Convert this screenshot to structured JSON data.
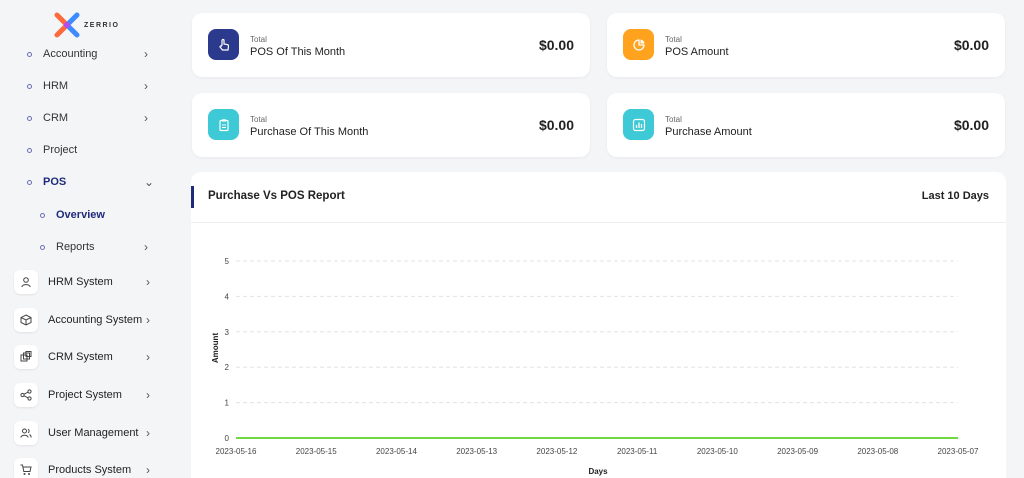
{
  "brand": {
    "name": "ZERRIO"
  },
  "sidebar": {
    "sub_items": [
      {
        "label": "Accounting",
        "chevron": "›"
      },
      {
        "label": "HRM",
        "chevron": "›"
      },
      {
        "label": "CRM",
        "chevron": "›"
      },
      {
        "label": "Project",
        "chevron": ""
      },
      {
        "label": "POS",
        "chevron": "⌄"
      },
      {
        "label": "Overview",
        "chevron": ""
      },
      {
        "label": "Reports",
        "chevron": "›"
      }
    ],
    "systems": [
      {
        "label": "HRM System",
        "icon": "user-icon"
      },
      {
        "label": "Accounting System",
        "icon": "box-icon"
      },
      {
        "label": "CRM System",
        "icon": "layers-icon"
      },
      {
        "label": "Project System",
        "icon": "share-icon"
      },
      {
        "label": "User Management",
        "icon": "users-icon"
      },
      {
        "label": "Products System",
        "icon": "cart-icon"
      }
    ]
  },
  "cards": [
    {
      "total": "Total",
      "title": "POS Of This Month",
      "value": "$0.00",
      "color": "#2b3a8c",
      "icon": "hand-pointer-icon"
    },
    {
      "total": "Total",
      "title": "POS Amount",
      "value": "$0.00",
      "color": "#ffa21d",
      "icon": "pie-chart-icon"
    },
    {
      "total": "Total",
      "title": "Purchase Of This Month",
      "value": "$0.00",
      "color": "#3ec9d6",
      "icon": "clipboard-icon"
    },
    {
      "total": "Total",
      "title": "Purchase Amount",
      "value": "$0.00",
      "color": "#3ec9d6",
      "icon": "bar-chart-icon"
    }
  ],
  "report": {
    "title": "Purchase Vs POS Report",
    "range": "Last 10 Days"
  },
  "chart_data": {
    "type": "line",
    "x": [
      "2023-05-16",
      "2023-05-15",
      "2023-05-14",
      "2023-05-13",
      "2023-05-12",
      "2023-05-11",
      "2023-05-10",
      "2023-05-09",
      "2023-05-08",
      "2023-05-07"
    ],
    "series": [
      {
        "values": [
          0,
          0,
          0,
          0,
          0,
          0,
          0,
          0,
          0,
          0
        ],
        "color": "#6fd943"
      }
    ],
    "xlabel": "Days",
    "ylabel": "Amount",
    "ylim": [
      0,
      5
    ],
    "yticks": [
      0,
      1,
      2,
      3,
      4,
      5
    ],
    "grid": true
  }
}
